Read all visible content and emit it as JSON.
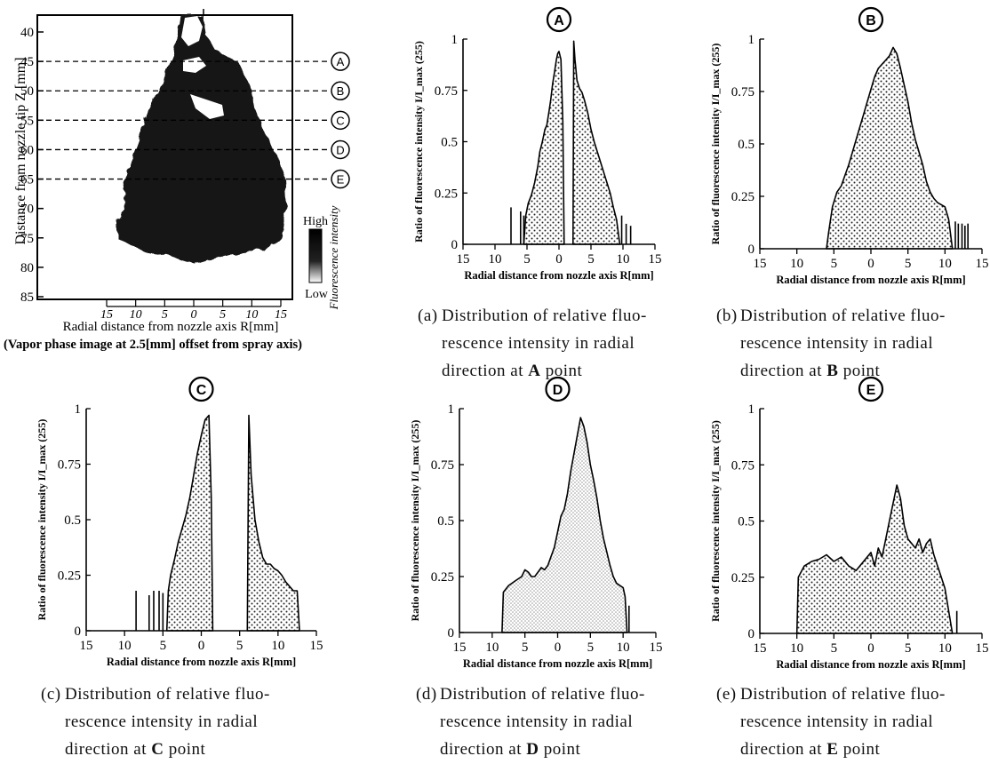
{
  "image_panel": {
    "ylabel": "Distance from nozzle tip Z [mm]",
    "yticks": [
      "40",
      "45",
      "50",
      "55",
      "60",
      "65",
      "70",
      "75",
      "80",
      "85"
    ],
    "xticks": [
      "15",
      "10",
      "5",
      "0",
      "5",
      "10",
      "15"
    ],
    "xlabel": "Radial distance from nozzle axis R[mm]",
    "note": "(Vapor phase image at 2.5[mm] offset from spray axis)",
    "markers": [
      {
        "label": "A",
        "z": 45
      },
      {
        "label": "B",
        "z": 50
      },
      {
        "label": "C",
        "z": 55
      },
      {
        "label": "D",
        "z": 60
      },
      {
        "label": "E",
        "z": 65
      }
    ],
    "colorbar": {
      "high": "High",
      "low": "Low",
      "title": "Fluorescence intensity"
    }
  },
  "captions": [
    {
      "tag": "(a)",
      "line1": "Distribution of relative fluo-",
      "line2": "rescence intensity in radial",
      "line3_pre": "direction at ",
      "point": "A",
      "line3_post": " point"
    },
    {
      "tag": "(b)",
      "line1": "Distribution of relative fluo-",
      "line2": "rescence intensity in radial",
      "line3_pre": "direction at ",
      "point": "B",
      "line3_post": " point"
    },
    {
      "tag": "(c)",
      "line1": "Distribution of relative fluo-",
      "line2": "rescence intensity in radial",
      "line3_pre": "direction at ",
      "point": "C",
      "line3_post": " point"
    },
    {
      "tag": "(d)",
      "line1": "Distribution of relative fluo-",
      "line2": "rescence intensity in radial",
      "line3_pre": "direction at ",
      "point": "D",
      "line3_post": " point"
    },
    {
      "tag": "(e)",
      "line1": "Distribution of relative fluo-",
      "line2": "rescence intensity in radial",
      "line3_pre": "direction at ",
      "point": "E",
      "line3_post": " point"
    }
  ],
  "chart_data": [
    {
      "type": "area",
      "panel": "A",
      "ylabel": "Ratio of fluorescence intensity I/I_max (255)",
      "xlabel": "Radial distance from nozzle axis R[mm]",
      "xticks": [
        "15",
        "10",
        "5",
        "0",
        "5",
        "10",
        "15"
      ],
      "yticks": [
        "0",
        "0.25",
        "0.5",
        "0.75",
        "1"
      ],
      "xlim": [
        -15,
        15
      ],
      "ylim": [
        0,
        1
      ],
      "segments": [
        [
          [
            -5.5,
            0
          ],
          [
            -5.2,
            0.14
          ],
          [
            -4.8,
            0.2
          ],
          [
            -4.3,
            0.24
          ],
          [
            -3.8,
            0.3
          ],
          [
            -3.3,
            0.38
          ],
          [
            -3,
            0.45
          ],
          [
            -2.6,
            0.5
          ],
          [
            -2.2,
            0.56
          ],
          [
            -1.9,
            0.58
          ],
          [
            -1.6,
            0.64
          ],
          [
            -1.3,
            0.7
          ],
          [
            -1,
            0.78
          ],
          [
            -0.7,
            0.84
          ],
          [
            -0.4,
            0.9
          ],
          [
            -0.2,
            0.93
          ],
          [
            0,
            0.94
          ],
          [
            0.3,
            0.9
          ],
          [
            0.6,
            0.6
          ],
          [
            0.8,
            0
          ]
        ],
        [
          [
            2.2,
            0
          ],
          [
            2.3,
            0.99
          ],
          [
            2.5,
            0.9
          ],
          [
            2.8,
            0.8
          ],
          [
            3.2,
            0.76
          ],
          [
            3.6,
            0.74
          ],
          [
            4,
            0.7
          ],
          [
            4.5,
            0.64
          ],
          [
            5,
            0.56
          ],
          [
            5.5,
            0.5
          ],
          [
            6,
            0.45
          ],
          [
            6.5,
            0.4
          ],
          [
            7,
            0.35
          ],
          [
            7.5,
            0.3
          ],
          [
            8,
            0.25
          ],
          [
            8.5,
            0.18
          ],
          [
            9,
            0.12
          ],
          [
            9.5,
            0
          ]
        ]
      ],
      "spikes": [
        [
          -7.5,
          0.18
        ],
        [
          -6,
          0.16
        ],
        [
          -5.5,
          0.14
        ],
        [
          9.8,
          0.14
        ],
        [
          10.5,
          0.1
        ],
        [
          11.2,
          0.09
        ]
      ]
    },
    {
      "type": "area",
      "panel": "B",
      "ylabel": "Ratio of fluorescence intensity I/I_max (255)",
      "xlabel": "Radial distance from nozzle axis R[mm]",
      "xticks": [
        "15",
        "10",
        "5",
        "0",
        "5",
        "10",
        "15"
      ],
      "yticks": [
        "0",
        "0.25",
        "0.5",
        "0.75",
        "1"
      ],
      "xlim": [
        -15,
        15
      ],
      "ylim": [
        0,
        1
      ],
      "segments": [
        [
          [
            -6,
            0
          ],
          [
            -5.7,
            0.08
          ],
          [
            -5.2,
            0.2
          ],
          [
            -4.6,
            0.27
          ],
          [
            -4,
            0.3
          ],
          [
            -3.5,
            0.35
          ],
          [
            -3,
            0.4
          ],
          [
            -2.5,
            0.46
          ],
          [
            -2,
            0.52
          ],
          [
            -1.5,
            0.58
          ],
          [
            -1,
            0.64
          ],
          [
            -0.5,
            0.7
          ],
          [
            0,
            0.76
          ],
          [
            0.5,
            0.82
          ],
          [
            1,
            0.86
          ],
          [
            1.5,
            0.88
          ],
          [
            2,
            0.9
          ],
          [
            2.5,
            0.92
          ],
          [
            3,
            0.96
          ],
          [
            3.5,
            0.93
          ],
          [
            4,
            0.86
          ],
          [
            4.5,
            0.78
          ],
          [
            5,
            0.7
          ],
          [
            5.5,
            0.6
          ],
          [
            6,
            0.52
          ],
          [
            6.5,
            0.46
          ],
          [
            7,
            0.4
          ],
          [
            7.5,
            0.32
          ],
          [
            8,
            0.27
          ],
          [
            8.5,
            0.24
          ],
          [
            9,
            0.22
          ],
          [
            10,
            0.2
          ],
          [
            10.5,
            0.14
          ],
          [
            11,
            0
          ]
        ]
      ],
      "spikes": [
        [
          11.4,
          0.13
        ],
        [
          11.8,
          0.12
        ],
        [
          12.3,
          0.12
        ],
        [
          12.7,
          0.11
        ],
        [
          13.1,
          0.12
        ]
      ]
    },
    {
      "type": "area",
      "panel": "C",
      "ylabel": "Ratio of fluorescence intensity I/I_max (255)",
      "xlabel": "Radial distance from nozzle axis R[mm]",
      "xticks": [
        "15",
        "10",
        "5",
        "0",
        "5",
        "10",
        "15"
      ],
      "yticks": [
        "0",
        "0.25",
        "0.5",
        "0.75",
        "1"
      ],
      "xlim": [
        -15,
        15
      ],
      "ylim": [
        0,
        1
      ],
      "segments": [
        [
          [
            -4.5,
            0
          ],
          [
            -4.3,
            0.18
          ],
          [
            -4,
            0.25
          ],
          [
            -3.5,
            0.32
          ],
          [
            -3,
            0.4
          ],
          [
            -2.5,
            0.46
          ],
          [
            -2,
            0.52
          ],
          [
            -1.5,
            0.6
          ],
          [
            -1,
            0.7
          ],
          [
            -0.5,
            0.8
          ],
          [
            0,
            0.88
          ],
          [
            0.5,
            0.95
          ],
          [
            1,
            0.97
          ],
          [
            1.3,
            0.6
          ],
          [
            1.5,
            0
          ]
        ],
        [
          [
            6,
            0
          ],
          [
            6.2,
            0.97
          ],
          [
            6.5,
            0.7
          ],
          [
            7,
            0.5
          ],
          [
            7.5,
            0.4
          ],
          [
            8,
            0.33
          ],
          [
            8.5,
            0.3
          ],
          [
            9,
            0.3
          ],
          [
            9.5,
            0.28
          ],
          [
            10,
            0.27
          ],
          [
            10.5,
            0.25
          ],
          [
            11,
            0.22
          ],
          [
            11.5,
            0.2
          ],
          [
            12,
            0.18
          ],
          [
            12.5,
            0.18
          ],
          [
            12.8,
            0
          ]
        ]
      ],
      "spikes": [
        [
          -8.5,
          0.18
        ],
        [
          -6.8,
          0.16
        ],
        [
          -6.2,
          0.18
        ],
        [
          -5.5,
          0.18
        ],
        [
          -5,
          0.17
        ]
      ]
    },
    {
      "type": "area",
      "panel": "D",
      "ylabel": "Ratio of fluorescence intensity I/I_max (255)",
      "xlabel": "Radial distance from nozzle axis R[mm]",
      "xticks": [
        "15",
        "10",
        "5",
        "0",
        "5",
        "10",
        "15"
      ],
      "yticks": [
        "0",
        "0.25",
        "0.5",
        "0.75",
        "1"
      ],
      "xlim": [
        -15,
        15
      ],
      "ylim": [
        0,
        1
      ],
      "segments": [
        [
          [
            -8.5,
            0
          ],
          [
            -8.3,
            0.18
          ],
          [
            -7.5,
            0.21
          ],
          [
            -6.5,
            0.23
          ],
          [
            -5.5,
            0.25
          ],
          [
            -5,
            0.28
          ],
          [
            -4.5,
            0.27
          ],
          [
            -4,
            0.25
          ],
          [
            -3.5,
            0.25
          ],
          [
            -3,
            0.27
          ],
          [
            -2.5,
            0.29
          ],
          [
            -2,
            0.28
          ],
          [
            -1.5,
            0.3
          ],
          [
            -1,
            0.34
          ],
          [
            -0.5,
            0.38
          ],
          [
            0,
            0.45
          ],
          [
            0.5,
            0.52
          ],
          [
            1,
            0.55
          ],
          [
            1.5,
            0.62
          ],
          [
            2,
            0.72
          ],
          [
            2.5,
            0.8
          ],
          [
            3,
            0.88
          ],
          [
            3.5,
            0.96
          ],
          [
            4,
            0.92
          ],
          [
            4.5,
            0.85
          ],
          [
            5,
            0.75
          ],
          [
            5.5,
            0.68
          ],
          [
            6,
            0.6
          ],
          [
            6.5,
            0.5
          ],
          [
            7,
            0.42
          ],
          [
            7.5,
            0.36
          ],
          [
            8,
            0.3
          ],
          [
            8.5,
            0.25
          ],
          [
            9,
            0.22
          ],
          [
            9.5,
            0.21
          ],
          [
            10,
            0.2
          ],
          [
            10.3,
            0.16
          ],
          [
            10.6,
            0
          ]
        ]
      ],
      "spikes": [
        [
          10.9,
          0.12
        ]
      ]
    },
    {
      "type": "area",
      "panel": "E",
      "ylabel": "Ratio of fluorescence intensity I/I_max (255)",
      "xlabel": "Radial distance from nozzle axis R[mm]",
      "xticks": [
        "15",
        "10",
        "5",
        "0",
        "5",
        "10",
        "15"
      ],
      "yticks": [
        "0",
        "0.25",
        "0.5",
        "0.75",
        "1"
      ],
      "xlim": [
        -15,
        15
      ],
      "ylim": [
        0,
        1
      ],
      "segments": [
        [
          [
            -10,
            0
          ],
          [
            -9.8,
            0.25
          ],
          [
            -9,
            0.3
          ],
          [
            -8,
            0.32
          ],
          [
            -7,
            0.33
          ],
          [
            -6,
            0.35
          ],
          [
            -5,
            0.32
          ],
          [
            -4,
            0.34
          ],
          [
            -3,
            0.3
          ],
          [
            -2,
            0.28
          ],
          [
            -1,
            0.32
          ],
          [
            0,
            0.36
          ],
          [
            0.5,
            0.3
          ],
          [
            1,
            0.38
          ],
          [
            1.5,
            0.34
          ],
          [
            2,
            0.42
          ],
          [
            2.5,
            0.5
          ],
          [
            3,
            0.58
          ],
          [
            3.5,
            0.66
          ],
          [
            4,
            0.6
          ],
          [
            4.5,
            0.48
          ],
          [
            5,
            0.42
          ],
          [
            5.5,
            0.4
          ],
          [
            6,
            0.38
          ],
          [
            6.5,
            0.42
          ],
          [
            7,
            0.36
          ],
          [
            7.5,
            0.4
          ],
          [
            8,
            0.42
          ],
          [
            8.5,
            0.35
          ],
          [
            9,
            0.3
          ],
          [
            9.5,
            0.25
          ],
          [
            10,
            0.2
          ],
          [
            10.5,
            0.1
          ],
          [
            11,
            0
          ]
        ]
      ],
      "spikes": [
        [
          11.6,
          0.1
        ]
      ]
    }
  ]
}
